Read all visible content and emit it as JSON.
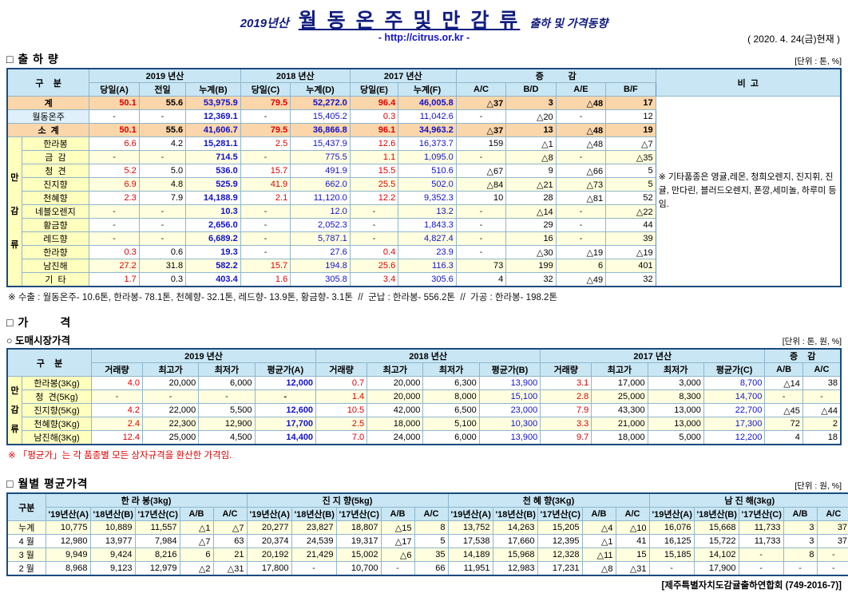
{
  "colors": {
    "title_navy": "#101c7e",
    "url_blue": "#1414cc",
    "value_red": "#e00000",
    "value_blue": "#1111cd",
    "header_bg": "#c9e6f4",
    "subtotal_bg": "#fcd6ab",
    "label_yellow": "#ffffbe",
    "label_blue_bg": "#dff0fa",
    "row_alt_bg": "#ffffdf",
    "grid_line": "#8fb6cc",
    "table_border": "#1b4a7e"
  },
  "page": {
    "year_label": "2019년산",
    "title": "월 동 온 주 및 만 감 류",
    "subtitle": "출하 및 가격동향",
    "url": "- http://citrus.or.kr -",
    "date_note": "( 2020. 4. 24(금)현재 )",
    "footer": "[제주특별자치도감귤출하연합회 (749-2016-7)]"
  },
  "shipment": {
    "section_title": "□ 출 하 량",
    "unit_note": "[단위 : 톤, %]",
    "headers": {
      "gubun": "구    분",
      "y2019": "2019 년산",
      "y2018": "2018 년산",
      "y2017": "2017 년산",
      "change": "증          감",
      "remark": "비  고"
    },
    "subheaders": [
      "당일(A)",
      "전일",
      "누계(B)",
      "당일(C)",
      "누계(D)",
      "당일(E)",
      "누계(F)",
      "A/C",
      "B/D",
      "A/E",
      "B/F"
    ],
    "group_label": "만감류",
    "remark_text": "※ 기타품종은 영귤,레몬, 청희오렌지, 진지휘, 진귤, 만다린, 블러드오렌지, 폰깡,세미놀, 하루미 등 임.",
    "rows": [
      {
        "label": "계",
        "type": "total",
        "cells": [
          "50.1",
          "55.6",
          "53,975.9",
          "79.5",
          "52,272.0",
          "96.4",
          "46,005.8",
          "△37",
          "3",
          "△48",
          "17"
        ]
      },
      {
        "label": "월동온주",
        "type": "plain",
        "cells": [
          "-",
          "-",
          "12,369.1",
          "-",
          "15,405.2",
          "0.3",
          "11,042.6",
          "-",
          "△20",
          "-",
          "12"
        ]
      },
      {
        "label": "소  계",
        "type": "total",
        "cells": [
          "50.1",
          "55.6",
          "41,606.7",
          "79.5",
          "36,866.8",
          "96.1",
          "34,963.2",
          "△37",
          "13",
          "△48",
          "19"
        ]
      },
      {
        "label": "한라봉",
        "type": "item",
        "cells": [
          "6.6",
          "4.2",
          "15,281.1",
          "2.5",
          "15,437.9",
          "12.6",
          "16,373.7",
          "159",
          "△1",
          "△48",
          "△7"
        ]
      },
      {
        "label": "금  감",
        "type": "item",
        "cells": [
          "-",
          "-",
          "714.5",
          "-",
          "775.5",
          "1.1",
          "1,095.0",
          "-",
          "△8",
          "-",
          "△35"
        ]
      },
      {
        "label": "청  견",
        "type": "item",
        "cells": [
          "5.2",
          "5.0",
          "536.0",
          "15.7",
          "491.9",
          "15.5",
          "510.6",
          "△67",
          "9",
          "△66",
          "5"
        ]
      },
      {
        "label": "진지향",
        "type": "item",
        "cells": [
          "6.9",
          "4.8",
          "525.9",
          "41.9",
          "662.0",
          "25.5",
          "502.0",
          "△84",
          "△21",
          "△73",
          "5"
        ]
      },
      {
        "label": "천혜향",
        "type": "item",
        "cells": [
          "2.3",
          "7.9",
          "14,188.9",
          "2.1",
          "11,120.0",
          "12.2",
          "9,352.3",
          "10",
          "28",
          "△81",
          "52"
        ]
      },
      {
        "label": "네블오렌지",
        "type": "item",
        "cells": [
          "-",
          "-",
          "10.3",
          "-",
          "12.0",
          "-",
          "13.2",
          "-",
          "△14",
          "-",
          "△22"
        ]
      },
      {
        "label": "황금향",
        "type": "item",
        "cells": [
          "-",
          "-",
          "2,656.0",
          "-",
          "2,052.3",
          "-",
          "1,843.3",
          "-",
          "29",
          "-",
          "44"
        ]
      },
      {
        "label": "레드향",
        "type": "item",
        "cells": [
          "-",
          "-",
          "6,689.2",
          "-",
          "5,787.1",
          "-",
          "4,827.4",
          "-",
          "16",
          "-",
          "39"
        ]
      },
      {
        "label": "한라향",
        "type": "item",
        "cells": [
          "0.3",
          "0.6",
          "19.3",
          "-",
          "27.6",
          "0.4",
          "23.9",
          "-",
          "△30",
          "△19",
          "△19"
        ]
      },
      {
        "label": "남진해",
        "type": "item",
        "cells": [
          "27.2",
          "31.8",
          "582.2",
          "15.7",
          "194.8",
          "25.6",
          "116.3",
          "73",
          "199",
          "6",
          "401"
        ]
      },
      {
        "label": "기  타",
        "type": "item",
        "cells": [
          "1.7",
          "0.3",
          "403.4",
          "1.6",
          "305.8",
          "3.4",
          "305.6",
          "4",
          "32",
          "△49",
          "32"
        ]
      }
    ],
    "export_note": "※ 수출 : 월동온주- 10.6톤, 한라봉- 78.1톤, 천혜향- 32.1톤, 레드향- 13.9톤, 황금향- 3.1톤  //  군납 : 한라봉- 556.2톤  //  가공 : 한라봉- 198.2톤"
  },
  "price": {
    "section_title": "□ 가        격",
    "sub_section_title": "○ 도매시장가격",
    "unit_note": "[단위 : 톤, 원, %]",
    "headers": {
      "gubun": "구    분",
      "y2019": "2019 년산",
      "y2018": "2018 년산",
      "y2017": "2017 년산",
      "change": "증    감"
    },
    "subheaders": [
      "거래량",
      "최고가",
      "최저가",
      "평균가(A)",
      "거래량",
      "최고가",
      "최저가",
      "평균가(B)",
      "거래량",
      "최고가",
      "최저가",
      "평균가(C)",
      "A/B",
      "A/C"
    ],
    "group_label": "만감류",
    "rows": [
      {
        "label": "한라봉(3Kg)",
        "cells": [
          "4.0",
          "20,000",
          "6,000",
          "12,000",
          "0.7",
          "20,000",
          "6,300",
          "13,900",
          "3.1",
          "17,000",
          "3,000",
          "8,700",
          "△14",
          "38"
        ]
      },
      {
        "label": "청  견(5Kg)",
        "cells": [
          "-",
          "-",
          "-",
          "-",
          "1.4",
          "20,000",
          "8,000",
          "15,100",
          "2.8",
          "25,000",
          "8,300",
          "14,700",
          "-",
          "-"
        ]
      },
      {
        "label": "진지향(5Kg)",
        "cells": [
          "4.2",
          "22,000",
          "5,500",
          "12,600",
          "10.5",
          "42,000",
          "6,500",
          "23,000",
          "7.9",
          "43,300",
          "13,000",
          "22,700",
          "△45",
          "△44"
        ]
      },
      {
        "label": "천혜향(3Kg)",
        "cells": [
          "2.4",
          "22,300",
          "12,900",
          "17,700",
          "2.5",
          "18,000",
          "5,100",
          "10,300",
          "3.3",
          "21,000",
          "13,000",
          "17,300",
          "72",
          "2"
        ]
      },
      {
        "label": "남진해(3Kg)",
        "cells": [
          "12.4",
          "25,000",
          "4,500",
          "14,400",
          "7.0",
          "24,000",
          "6,000",
          "13,900",
          "9.7",
          "18,000",
          "5,000",
          "12,200",
          "4",
          "18"
        ]
      }
    ],
    "note": "※ 「평균가」는 각 품종별 모든 상자규격을 환산한 가격임."
  },
  "monthly": {
    "section_title": "□ 월별 평균가격",
    "unit_note": "[단위 : 원, %]",
    "gubun": "구분",
    "groups": [
      "한 라 봉(3kg)",
      "진 지 향(5kg)",
      "천 혜 향(3Kg)",
      "남 진 해(3kg)"
    ],
    "subheaders": [
      "'19년산(A)",
      "'18년산(B)",
      "'17년산(C)",
      "A/B",
      "A/C"
    ],
    "rows": [
      {
        "label": "누계",
        "cells": [
          "10,775",
          "10,889",
          "11,557",
          "△1",
          "△7",
          "20,277",
          "23,827",
          "18,807",
          "△15",
          "8",
          "13,752",
          "14,263",
          "15,205",
          "△4",
          "△10",
          "16,076",
          "15,668",
          "11,733",
          "3",
          "37"
        ]
      },
      {
        "label": "4 월",
        "cells": [
          "12,980",
          "13,977",
          "7,984",
          "△7",
          "63",
          "20,374",
          "24,539",
          "19,317",
          "△17",
          "5",
          "17,538",
          "17,660",
          "12,395",
          "△1",
          "41",
          "16,125",
          "15,722",
          "11,733",
          "3",
          "37"
        ]
      },
      {
        "label": "3 월",
        "cells": [
          "9,949",
          "9,424",
          "8,216",
          "6",
          "21",
          "20,192",
          "21,429",
          "15,002",
          "△6",
          "35",
          "14,189",
          "15,968",
          "12,328",
          "△11",
          "15",
          "15,185",
          "14,102",
          "-",
          "8",
          "-"
        ]
      },
      {
        "label": "2 월",
        "cells": [
          "8,968",
          "9,123",
          "12,979",
          "△2",
          "△31",
          "17,800",
          "-",
          "10,700",
          "-",
          "66",
          "11,951",
          "12,983",
          "17,231",
          "△8",
          "△31",
          "-",
          "17,900",
          "-",
          "-",
          "-"
        ]
      }
    ]
  }
}
